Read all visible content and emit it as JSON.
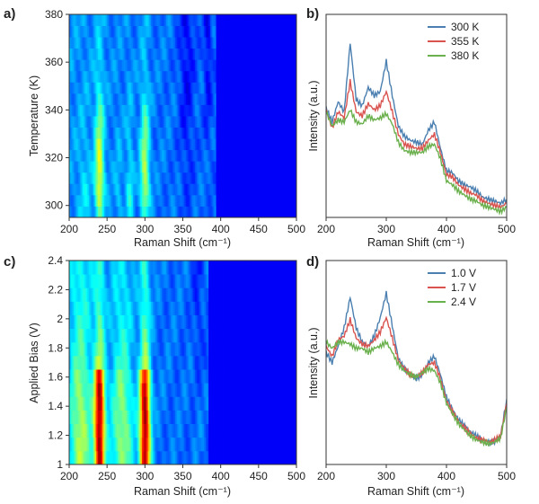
{
  "panels": [
    {
      "label": "a)",
      "type": "heatmap",
      "xlabel": "Raman Shift (cm⁻¹)",
      "ylabel": "Temperature (K)",
      "xlim": [
        200,
        500
      ],
      "ylim": [
        295,
        380
      ],
      "xticks": [
        "200",
        "250",
        "300",
        "350",
        "400",
        "450",
        "500"
      ],
      "yticks": [
        "300",
        "320",
        "340",
        "360",
        "380"
      ]
    },
    {
      "label": "b)",
      "type": "line",
      "xlabel": "Raman Shift (cm⁻¹)",
      "ylabel": "Intensity (a.u.)",
      "xlim": [
        200,
        500
      ],
      "xticks": [
        "200",
        "300",
        "400",
        "500"
      ]
    },
    {
      "label": "c)",
      "type": "heatmap",
      "xlabel": "Raman Shift (cm⁻¹)",
      "ylabel": "Applied Bias (V)",
      "xlim": [
        200,
        500
      ],
      "ylim": [
        1.0,
        2.4
      ],
      "xticks": [
        "200",
        "250",
        "300",
        "350",
        "400",
        "450",
        "500"
      ],
      "yticks": [
        "1",
        "1.2",
        "1.4",
        "1.6",
        "1.8",
        "2",
        "2.2",
        "2.4"
      ]
    },
    {
      "label": "d)",
      "type": "line",
      "xlabel": "Raman Shift (cm⁻¹)",
      "ylabel": "Intensity (a.u.)",
      "xlim": [
        200,
        500
      ],
      "xticks": [
        "200",
        "300",
        "400",
        "500"
      ]
    }
  ],
  "chart_data": [
    {
      "panel": "a",
      "type": "heatmap",
      "colormap": "jet",
      "x_range": [
        200,
        500
      ],
      "y_range": [
        295,
        380
      ],
      "y_rows": [
        295,
        300,
        305,
        310,
        315,
        320,
        325,
        330,
        335,
        340,
        345,
        350,
        355,
        360,
        365,
        370,
        375,
        380
      ],
      "bands": [
        {
          "x": 240,
          "width": 6,
          "intensity_by_row": [
            0.45,
            0.55,
            0.6,
            0.6,
            0.6,
            0.58,
            0.55,
            0.5,
            0.48,
            0.44,
            0.4,
            0.38,
            0.35,
            0.33,
            0.32,
            0.31,
            0.3,
            0.3
          ]
        },
        {
          "x": 300,
          "width": 6,
          "intensity_by_row": [
            0.42,
            0.52,
            0.56,
            0.56,
            0.56,
            0.54,
            0.52,
            0.48,
            0.45,
            0.42,
            0.38,
            0.36,
            0.34,
            0.32,
            0.31,
            0.3,
            0.3,
            0.3
          ]
        },
        {
          "x": 280,
          "width": 5,
          "intensity_by_row": [
            0.35,
            0.38,
            0.38,
            0.36,
            0.35,
            0.34,
            0.33,
            0.32,
            0.31,
            0.3,
            0.29,
            0.28,
            0.28,
            0.27,
            0.27,
            0.26,
            0.26,
            0.26
          ]
        },
        {
          "x": 265,
          "width": 5,
          "intensity_by_row": [
            0.3,
            0.32,
            0.32,
            0.31,
            0.3,
            0.29,
            0.28,
            0.28,
            0.27,
            0.27,
            0.26,
            0.26,
            0.25,
            0.25,
            0.25,
            0.25,
            0.25,
            0.25
          ]
        },
        {
          "x": 220,
          "width": 8,
          "intensity_by_row": [
            0.32,
            0.33,
            0.33,
            0.32,
            0.31,
            0.3,
            0.3,
            0.29,
            0.28,
            0.28,
            0.27,
            0.27,
            0.26,
            0.26,
            0.26,
            0.26,
            0.26,
            0.26
          ]
        },
        {
          "x": 355,
          "width": 10,
          "intensity_by_row": [
            0.22,
            0.22,
            0.21,
            0.2,
            0.2,
            0.19,
            0.18,
            0.18,
            0.17,
            0.17,
            0.16,
            0.16,
            0.15,
            0.15,
            0.15,
            0.15,
            0.15,
            0.15
          ]
        },
        {
          "x": 383,
          "width": 5,
          "intensity_by_row": [
            0.25,
            0.26,
            0.26,
            0.25,
            0.24,
            0.23,
            0.22,
            0.21,
            0.2,
            0.19,
            0.18,
            0.17,
            0.16,
            0.16,
            0.15,
            0.15,
            0.15,
            0.15
          ]
        }
      ],
      "baseline_low_x": 200,
      "baseline_high_x": 395
    },
    {
      "panel": "b",
      "type": "line",
      "x_range": [
        200,
        500
      ],
      "legend_position": "top-right",
      "series": [
        {
          "name": "300 K",
          "color": "#4a7fb0",
          "x": [
            200,
            210,
            220,
            230,
            240,
            250,
            260,
            270,
            280,
            290,
            300,
            310,
            320,
            330,
            340,
            350,
            360,
            370,
            380,
            390,
            400,
            410,
            420,
            430,
            440,
            450,
            460,
            470,
            480,
            490,
            500
          ],
          "y": [
            0.54,
            0.47,
            0.57,
            0.52,
            0.86,
            0.58,
            0.55,
            0.64,
            0.6,
            0.62,
            0.77,
            0.6,
            0.45,
            0.4,
            0.38,
            0.37,
            0.36,
            0.43,
            0.47,
            0.34,
            0.23,
            0.22,
            0.18,
            0.16,
            0.15,
            0.13,
            0.1,
            0.09,
            0.08,
            0.07,
            0.09
          ]
        },
        {
          "name": "355 K",
          "color": "#d9534f",
          "x": [
            200,
            210,
            220,
            230,
            240,
            250,
            260,
            270,
            280,
            290,
            300,
            310,
            320,
            330,
            340,
            350,
            360,
            370,
            380,
            390,
            400,
            410,
            420,
            430,
            440,
            450,
            460,
            470,
            480,
            490,
            500
          ],
          "y": [
            0.53,
            0.44,
            0.52,
            0.49,
            0.67,
            0.52,
            0.5,
            0.56,
            0.53,
            0.55,
            0.62,
            0.52,
            0.41,
            0.36,
            0.35,
            0.34,
            0.34,
            0.38,
            0.41,
            0.32,
            0.21,
            0.2,
            0.16,
            0.14,
            0.12,
            0.11,
            0.08,
            0.07,
            0.06,
            0.05,
            0.07
          ]
        },
        {
          "name": "380 K",
          "color": "#6ab04c",
          "x": [
            200,
            210,
            220,
            230,
            240,
            250,
            260,
            270,
            280,
            290,
            300,
            310,
            320,
            330,
            340,
            350,
            360,
            370,
            380,
            390,
            400,
            410,
            420,
            430,
            440,
            450,
            460,
            470,
            480,
            490,
            500
          ],
          "y": [
            0.52,
            0.45,
            0.48,
            0.47,
            0.53,
            0.47,
            0.46,
            0.5,
            0.48,
            0.49,
            0.51,
            0.46,
            0.37,
            0.33,
            0.32,
            0.32,
            0.32,
            0.35,
            0.36,
            0.29,
            0.18,
            0.16,
            0.13,
            0.11,
            0.09,
            0.08,
            0.06,
            0.05,
            0.04,
            0.03,
            0.05
          ]
        }
      ]
    },
    {
      "panel": "c",
      "type": "heatmap",
      "colormap": "jet",
      "x_range": [
        200,
        500
      ],
      "y_range": [
        1.0,
        2.4
      ],
      "y_rows": [
        1.0,
        1.1,
        1.2,
        1.3,
        1.4,
        1.5,
        1.6,
        1.7,
        1.8,
        1.9,
        2.0,
        2.1,
        2.2,
        2.3,
        2.4
      ],
      "bands": [
        {
          "x": 240,
          "width": 7,
          "intensity_by_row": [
            0.92,
            0.95,
            0.96,
            0.96,
            0.95,
            0.92,
            0.85,
            0.55,
            0.5,
            0.47,
            0.45,
            0.43,
            0.42,
            0.41,
            0.4
          ]
        },
        {
          "x": 300,
          "width": 7,
          "intensity_by_row": [
            0.94,
            0.97,
            0.98,
            0.98,
            0.96,
            0.93,
            0.86,
            0.56,
            0.51,
            0.48,
            0.46,
            0.44,
            0.43,
            0.42,
            0.41
          ]
        },
        {
          "x": 270,
          "width": 14,
          "intensity_by_row": [
            0.5,
            0.52,
            0.52,
            0.51,
            0.5,
            0.49,
            0.47,
            0.42,
            0.4,
            0.39,
            0.38,
            0.37,
            0.36,
            0.36,
            0.35
          ]
        },
        {
          "x": 215,
          "width": 14,
          "intensity_by_row": [
            0.52,
            0.53,
            0.53,
            0.52,
            0.51,
            0.5,
            0.48,
            0.44,
            0.42,
            0.41,
            0.4,
            0.39,
            0.38,
            0.38,
            0.37
          ]
        },
        {
          "x": 370,
          "width": 6,
          "intensity_by_row": [
            0.26,
            0.27,
            0.27,
            0.26,
            0.26,
            0.25,
            0.24,
            0.22,
            0.21,
            0.2,
            0.2,
            0.19,
            0.19,
            0.19,
            0.18
          ]
        }
      ],
      "baseline_low_x": 200,
      "baseline_high_x": 385
    },
    {
      "panel": "d",
      "type": "line",
      "x_range": [
        200,
        500
      ],
      "legend_position": "top-right",
      "series": [
        {
          "name": "1.0 V",
          "color": "#4a7fb0",
          "x": [
            200,
            210,
            220,
            230,
            240,
            250,
            260,
            270,
            280,
            290,
            300,
            310,
            320,
            330,
            340,
            350,
            360,
            370,
            380,
            390,
            400,
            410,
            420,
            430,
            440,
            450,
            460,
            470,
            480,
            490,
            500
          ],
          "y": [
            0.55,
            0.5,
            0.58,
            0.67,
            0.82,
            0.67,
            0.6,
            0.58,
            0.63,
            0.72,
            0.84,
            0.68,
            0.52,
            0.47,
            0.44,
            0.42,
            0.44,
            0.5,
            0.53,
            0.44,
            0.33,
            0.27,
            0.22,
            0.19,
            0.16,
            0.14,
            0.12,
            0.11,
            0.11,
            0.14,
            0.32
          ]
        },
        {
          "name": "1.7 V",
          "color": "#d9534f",
          "x": [
            200,
            210,
            220,
            230,
            240,
            250,
            260,
            270,
            280,
            290,
            300,
            310,
            320,
            330,
            340,
            350,
            360,
            370,
            380,
            390,
            400,
            410,
            420,
            430,
            440,
            450,
            460,
            470,
            480,
            490,
            500
          ],
          "y": [
            0.58,
            0.53,
            0.61,
            0.63,
            0.71,
            0.62,
            0.59,
            0.58,
            0.61,
            0.65,
            0.72,
            0.62,
            0.51,
            0.47,
            0.44,
            0.43,
            0.45,
            0.49,
            0.5,
            0.42,
            0.31,
            0.26,
            0.21,
            0.18,
            0.15,
            0.13,
            0.12,
            0.11,
            0.12,
            0.14,
            0.3
          ]
        },
        {
          "name": "2.4 V",
          "color": "#6ab04c",
          "x": [
            200,
            210,
            220,
            230,
            240,
            250,
            260,
            270,
            280,
            290,
            300,
            310,
            320,
            330,
            340,
            350,
            360,
            370,
            380,
            390,
            400,
            410,
            420,
            430,
            440,
            450,
            460,
            470,
            480,
            490,
            500
          ],
          "y": [
            0.6,
            0.57,
            0.6,
            0.6,
            0.59,
            0.57,
            0.57,
            0.55,
            0.57,
            0.58,
            0.6,
            0.55,
            0.49,
            0.46,
            0.44,
            0.43,
            0.45,
            0.47,
            0.46,
            0.4,
            0.3,
            0.25,
            0.2,
            0.17,
            0.14,
            0.12,
            0.11,
            0.1,
            0.11,
            0.13,
            0.28
          ]
        }
      ]
    }
  ]
}
